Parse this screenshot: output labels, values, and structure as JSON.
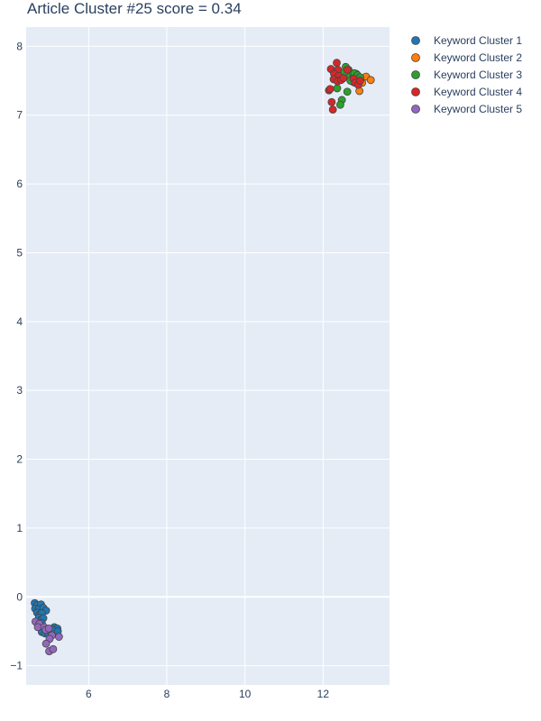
{
  "chart_data": {
    "type": "scatter",
    "title": "Article Cluster #25 score = 0.34",
    "xlabel": "",
    "ylabel": "",
    "xlim": [
      4.4,
      13.7
    ],
    "ylim": [
      -1.28,
      8.28
    ],
    "xticks": [
      6,
      8,
      10,
      12
    ],
    "yticks": [
      -1,
      0,
      1,
      2,
      3,
      4,
      5,
      6,
      7,
      8
    ],
    "grid": true,
    "legend_position": "top-right",
    "series": [
      {
        "name": "Keyword Cluster 1",
        "color": "#1f77b4",
        "points": [
          [
            4.62,
            -0.09
          ],
          [
            4.68,
            -0.12
          ],
          [
            4.78,
            -0.11
          ],
          [
            4.63,
            -0.17
          ],
          [
            4.72,
            -0.18
          ],
          [
            4.84,
            -0.16
          ],
          [
            4.91,
            -0.2
          ],
          [
            4.68,
            -0.23
          ],
          [
            4.74,
            -0.26
          ],
          [
            4.8,
            -0.24
          ],
          [
            4.73,
            -0.3
          ],
          [
            4.79,
            -0.33
          ],
          [
            4.84,
            -0.31
          ],
          [
            4.8,
            -0.38
          ],
          [
            4.76,
            -0.43
          ],
          [
            4.83,
            -0.45
          ],
          [
            5.12,
            -0.44
          ],
          [
            5.2,
            -0.46
          ],
          [
            5.07,
            -0.48
          ],
          [
            5.21,
            -0.5
          ],
          [
            4.8,
            -0.51
          ],
          [
            4.96,
            -0.49
          ],
          [
            4.88,
            -0.53
          ],
          [
            4.97,
            -0.55
          ]
        ]
      },
      {
        "name": "Keyword Cluster 2",
        "color": "#ff7f0e",
        "points": [
          [
            13.1,
            7.56
          ],
          [
            13.22,
            7.51
          ],
          [
            12.93,
            7.35
          ],
          [
            12.85,
            7.6
          ],
          [
            12.78,
            7.48
          ],
          [
            13.0,
            7.47
          ],
          [
            12.65,
            7.66
          ]
        ]
      },
      {
        "name": "Keyword Cluster 3",
        "color": "#2ca02c",
        "points": [
          [
            12.58,
            7.7
          ],
          [
            12.66,
            7.64
          ],
          [
            12.72,
            7.59
          ],
          [
            12.8,
            7.61
          ],
          [
            12.88,
            7.58
          ],
          [
            12.95,
            7.55
          ],
          [
            12.6,
            7.57
          ],
          [
            12.5,
            7.53
          ],
          [
            12.62,
            7.34
          ],
          [
            12.36,
            7.39
          ],
          [
            12.48,
            7.22
          ],
          [
            12.44,
            7.15
          ],
          [
            12.54,
            7.62
          ],
          [
            12.7,
            7.5
          ]
        ]
      },
      {
        "name": "Keyword Cluster 4",
        "color": "#d62728",
        "points": [
          [
            12.35,
            7.76
          ],
          [
            12.2,
            7.67
          ],
          [
            12.38,
            7.66
          ],
          [
            12.28,
            7.6
          ],
          [
            12.4,
            7.57
          ],
          [
            12.27,
            7.52
          ],
          [
            12.37,
            7.49
          ],
          [
            12.46,
            7.51
          ],
          [
            12.52,
            7.54
          ],
          [
            12.62,
            7.66
          ],
          [
            12.78,
            7.53
          ],
          [
            12.82,
            7.47
          ],
          [
            12.9,
            7.44
          ],
          [
            12.95,
            7.5
          ],
          [
            12.15,
            7.36
          ],
          [
            12.18,
            7.38
          ],
          [
            12.22,
            7.19
          ],
          [
            12.25,
            7.08
          ]
        ]
      },
      {
        "name": "Keyword Cluster 5",
        "color": "#9467bd",
        "points": [
          [
            4.64,
            -0.36
          ],
          [
            4.74,
            -0.39
          ],
          [
            4.7,
            -0.44
          ],
          [
            4.86,
            -0.44
          ],
          [
            4.9,
            -0.48
          ],
          [
            4.98,
            -0.46
          ],
          [
            5.06,
            -0.56
          ],
          [
            5.0,
            -0.61
          ],
          [
            4.91,
            -0.68
          ],
          [
            5.24,
            -0.58
          ],
          [
            4.99,
            -0.79
          ],
          [
            5.09,
            -0.76
          ]
        ]
      }
    ]
  }
}
